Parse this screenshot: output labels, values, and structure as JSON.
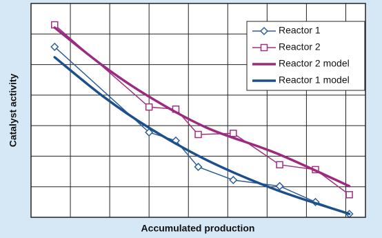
{
  "chart_data": {
    "type": "line",
    "x_label": "Accumulated production",
    "y_label": "Catalyst activity",
    "xlim": [
      0,
      8.5
    ],
    "ylim": [
      0,
      7
    ],
    "xticks": [
      0,
      1,
      2,
      3,
      4,
      5,
      6,
      7,
      8
    ],
    "yticks": [
      0,
      1,
      2,
      3,
      4,
      5,
      6,
      7
    ],
    "grid": true,
    "legend": "top-right",
    "series": [
      {
        "name": "Reactor 1",
        "color": "#2b5d9b",
        "marker": "diamond",
        "width": 1.5,
        "x": [
          0.6,
          3.0,
          3.68,
          4.25,
          5.14,
          6.32,
          7.23,
          8.09
        ],
        "values": [
          5.58,
          2.78,
          2.51,
          1.65,
          1.22,
          1.02,
          0.5,
          0.11
        ]
      },
      {
        "name": "Reactor 2",
        "color": "#a0307f",
        "marker": "square",
        "width": 1.5,
        "x": [
          0.6,
          3.0,
          3.68,
          4.25,
          5.14,
          6.32,
          7.23,
          8.09
        ],
        "values": [
          6.3,
          3.61,
          3.54,
          2.71,
          2.75,
          1.72,
          1.56,
          0.74
        ]
      },
      {
        "name": "Reactor 2 model",
        "color": "#9c2a7f",
        "marker": null,
        "width": 3.5,
        "x": [
          0.6,
          1.84,
          3.0,
          4.47,
          6.23,
          8.09
        ],
        "values": [
          6.21,
          4.95,
          3.95,
          2.93,
          2.1,
          1.02
        ]
      },
      {
        "name": "Reactor 1 model",
        "color": "#1d4f8c",
        "marker": null,
        "width": 3.5,
        "x": [
          0.6,
          1.84,
          3.0,
          4.47,
          6.23,
          8.09
        ],
        "values": [
          5.24,
          3.95,
          2.93,
          1.87,
          0.9,
          0.11
        ]
      }
    ]
  }
}
